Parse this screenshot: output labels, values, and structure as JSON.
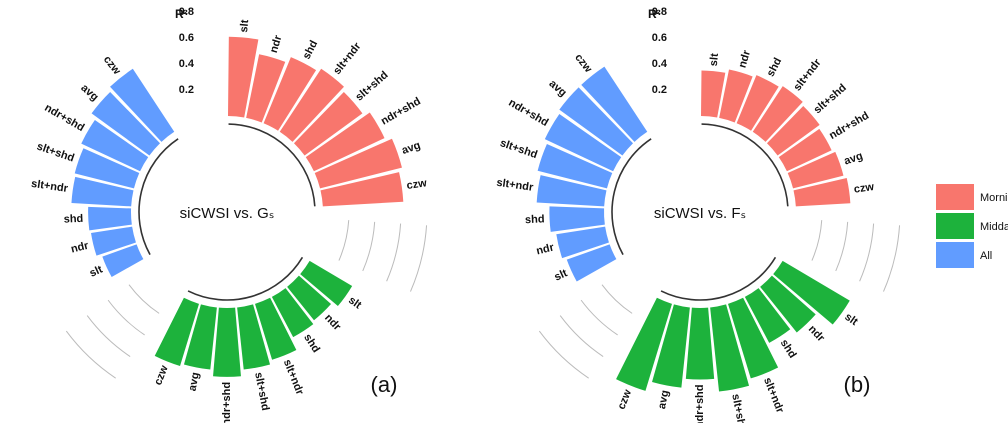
{
  "chart_data": [
    {
      "type": "polar_bar",
      "center_label": "siCWSI vs. Gₛ",
      "panel_label": "(a)",
      "y_label": "R²",
      "categories": [
        "slt",
        "ndr",
        "shd",
        "slt+ndr",
        "slt+shd",
        "ndr+shd",
        "avg",
        "czw"
      ],
      "series": [
        {
          "name": "Morning",
          "color": "#f8766d",
          "values": [
            0.61,
            0.5,
            0.55,
            0.58,
            0.55,
            0.6,
            0.65,
            0.62
          ]
        },
        {
          "name": "Midday",
          "color": "#1db23c",
          "values": [
            0.38,
            0.33,
            0.35,
            0.45,
            0.48,
            0.53,
            0.48,
            0.5
          ]
        },
        {
          "name": "All",
          "color": "#619cff",
          "values": [
            0.28,
            0.32,
            0.33,
            0.46,
            0.47,
            0.5,
            0.55,
            0.58
          ]
        }
      ],
      "ylim": [
        0,
        0.8
      ],
      "yticks": [
        0.2,
        0.4,
        0.6,
        0.8
      ]
    },
    {
      "type": "polar_bar",
      "center_label": "siCWSI vs. Fₛ",
      "panel_label": "(b)",
      "y_label": "R²",
      "categories": [
        "slt",
        "ndr",
        "shd",
        "slt+ndr",
        "slt+shd",
        "ndr+shd",
        "avg",
        "czw"
      ],
      "series": [
        {
          "values": [
            0.35,
            0.38,
            0.4,
            0.42,
            0.4,
            0.38,
            0.4,
            0.42
          ]
        },
        {
          "values": [
            0.6,
            0.45,
            0.4,
            0.6,
            0.65,
            0.55,
            0.62,
            0.7
          ]
        },
        {
          "values": [
            0.35,
            0.38,
            0.42,
            0.52,
            0.55,
            0.58,
            0.6,
            0.6
          ]
        }
      ],
      "ylim": [
        0,
        0.8
      ],
      "yticks": [
        0.2,
        0.4,
        0.6,
        0.8
      ]
    }
  ]
}
